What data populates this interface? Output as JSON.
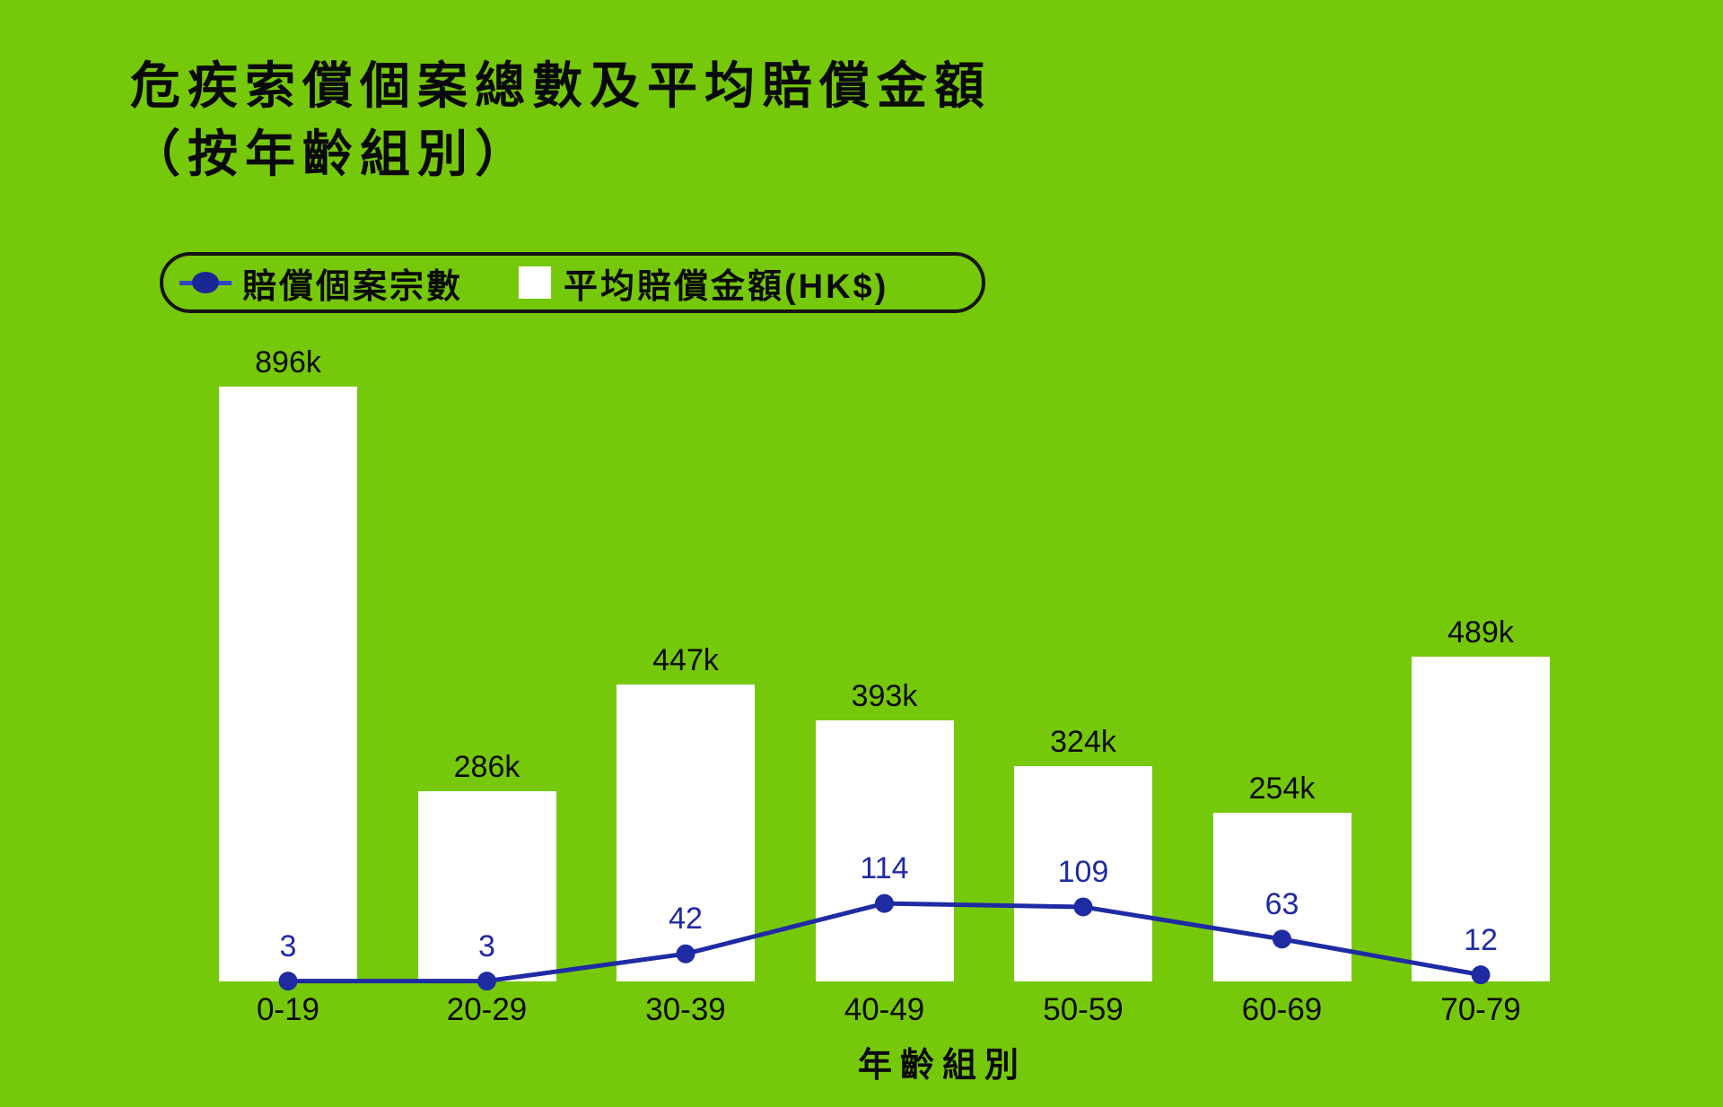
{
  "title": {
    "line1": "危疾索償個案總數及平均賠償金額",
    "line2": "（按年齡組別）"
  },
  "legend": {
    "case_series_label": "賠償個案宗數",
    "amount_series_label": "平均賠償金額(HK$)"
  },
  "xaxis": {
    "title": "年齡組別"
  },
  "colors": {
    "background": "#76C80A",
    "bar": "#FFFFFF",
    "line": "#1F2BA3",
    "text": "#0A0A0A"
  },
  "chart_data": {
    "type": "bar",
    "subtype": "bar-line-combo",
    "title": "危疾索償個案總數及平均賠償金額（按年齡組別）",
    "xlabel": "年齡組別",
    "categories": [
      "0-19",
      "20-29",
      "30-39",
      "40-49",
      "50-59",
      "60-69",
      "70-79"
    ],
    "series": [
      {
        "name": "平均賠償金額(HK$)",
        "type": "bar",
        "values": [
          896000,
          286000,
          447000,
          393000,
          324000,
          254000,
          489000
        ],
        "labels": [
          "896k",
          "286k",
          "447k",
          "393k",
          "324k",
          "254k",
          "489k"
        ],
        "color": "#FFFFFF"
      },
      {
        "name": "賠償個案宗數",
        "type": "line",
        "values": [
          3,
          3,
          42,
          114,
          109,
          63,
          12
        ],
        "labels": [
          "3",
          "3",
          "42",
          "114",
          "109",
          "63",
          "12"
        ],
        "color": "#1F2BA3"
      }
    ],
    "grid": false,
    "legend_position": "top-left",
    "y_axis_visible": false
  }
}
